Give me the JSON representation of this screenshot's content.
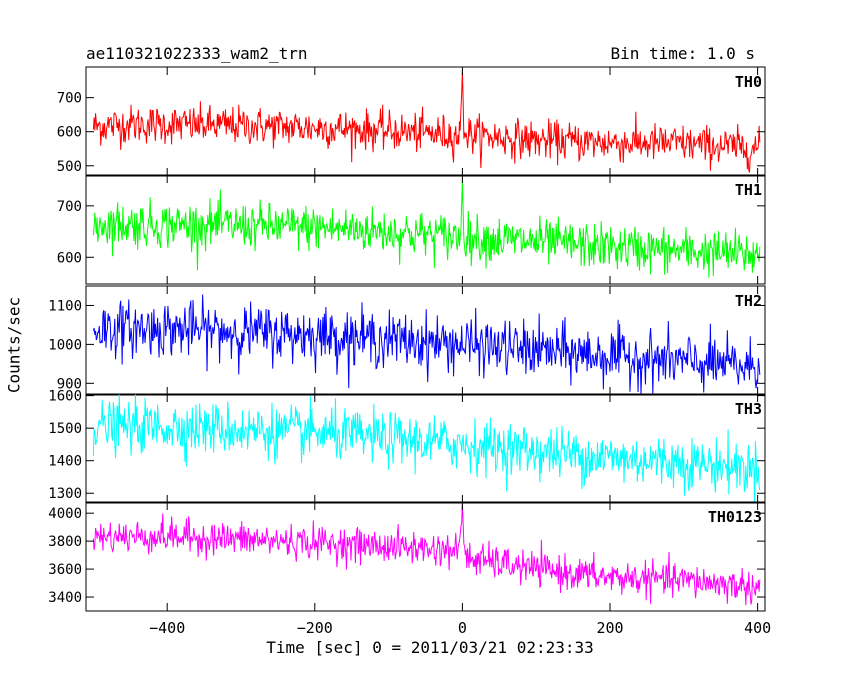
{
  "header": {
    "title": "ae110321022333_wam2_trn",
    "bin_time": "Bin time: 1.0 s"
  },
  "chart_data": {
    "type": "line",
    "xlabel": "Time [sec] 0 = 2011/03/21 02:23:33",
    "ylabel": "Counts/sec",
    "xlim": [
      -510,
      410
    ],
    "x_ticks": [
      -400,
      -200,
      0,
      200,
      400
    ],
    "x_tick_labels": [
      "−400",
      "−200",
      "0",
      "200",
      "400"
    ],
    "bin_time_s": 1.0,
    "panels": [
      {
        "name": "TH0",
        "color": "#ff0000",
        "ylim": [
          470,
          790
        ],
        "y_ticks": [
          500,
          600,
          700
        ],
        "y_tick_labels": [
          "500",
          "600",
          "700"
        ],
        "x_range": [
          -500,
          403
        ],
        "profile": {
          "x": [
            -500,
            -450,
            -300,
            -150,
            -5,
            0,
            5,
            100,
            200,
            300,
            400
          ],
          "y": [
            615,
            622,
            618,
            608,
            590,
            640,
            592,
            575,
            568,
            565,
            550
          ]
        },
        "noise_sd": 28,
        "spike": {
          "x": 0,
          "peak": 780
        }
      },
      {
        "name": "TH1",
        "color": "#00ff00",
        "ylim": [
          548,
          760
        ],
        "y_ticks": [
          600,
          700
        ],
        "y_tick_labels": [
          "600",
          "700"
        ],
        "x_range": [
          -500,
          403
        ],
        "profile": {
          "x": [
            -500,
            -300,
            -150,
            -5,
            0,
            5,
            100,
            200,
            300,
            400
          ],
          "y": [
            665,
            662,
            655,
            640,
            662,
            638,
            630,
            620,
            612,
            605
          ]
        },
        "noise_sd": 22,
        "spike": {
          "x": 0,
          "peak": 752
        }
      },
      {
        "name": "TH2",
        "color": "#0000ff",
        "ylim": [
          870,
          1150
        ],
        "y_ticks": [
          900,
          1000,
          1100
        ],
        "y_tick_labels": [
          "900",
          "1000",
          "1100"
        ],
        "x_range": [
          -500,
          403
        ],
        "profile": {
          "x": [
            -500,
            -400,
            -200,
            0,
            200,
            300,
            400
          ],
          "y": [
            1040,
            1040,
            1025,
            1000,
            970,
            955,
            940
          ]
        },
        "noise_sd": 35,
        "spike": null
      },
      {
        "name": "TH3",
        "color": "#00ffff",
        "ylim": [
          1270,
          1605
        ],
        "y_ticks": [
          1300,
          1400,
          1500,
          1600
        ],
        "y_tick_labels": [
          "1300",
          "1400",
          "1500",
          "1600"
        ],
        "x_range": [
          -500,
          403
        ],
        "profile": {
          "x": [
            -500,
            -400,
            -200,
            0,
            200,
            300,
            400
          ],
          "y": [
            1505,
            1505,
            1485,
            1450,
            1410,
            1395,
            1375
          ]
        },
        "noise_sd": 40,
        "spike": null
      },
      {
        "name": "TH0123",
        "color": "#ff00ff",
        "ylim": [
          3300,
          4080
        ],
        "y_ticks": [
          3400,
          3600,
          3800,
          4000
        ],
        "y_tick_labels": [
          "3400",
          "3600",
          "3800",
          "4000"
        ],
        "x_range": [
          -500,
          403
        ],
        "profile": {
          "x": [
            -500,
            -400,
            -200,
            -5,
            0,
            5,
            100,
            200,
            300,
            400
          ],
          "y": [
            3830,
            3835,
            3790,
            3735,
            3850,
            3680,
            3600,
            3540,
            3520,
            3470
          ]
        },
        "noise_sd": 60,
        "spike": {
          "x": 0,
          "peak": 4080
        }
      }
    ]
  }
}
